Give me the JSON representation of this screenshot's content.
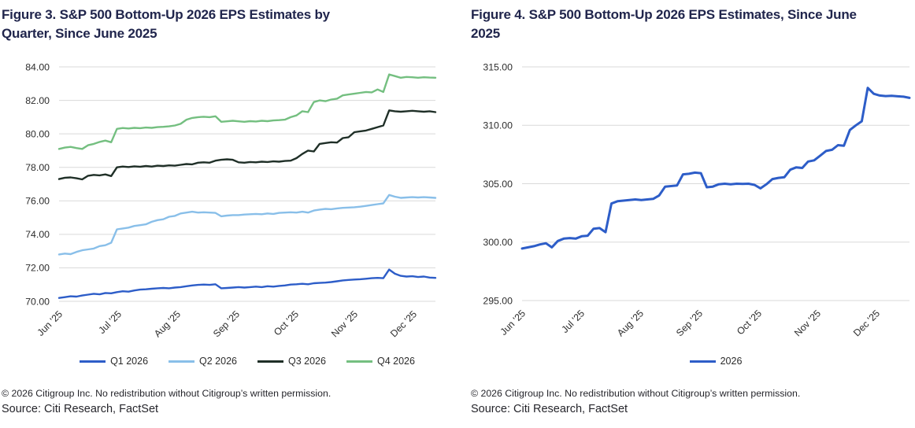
{
  "footer": {
    "copyright": "© 2026 Citigroup Inc. No redistribution without Citigroup’s written permission.",
    "source": "Source: Citi Research, FactSet"
  },
  "colors": {
    "q1_blue": "#2d5dc8",
    "q2_light_blue": "#89bfe9",
    "q3_dark_green": "#1f2f27",
    "q4_green": "#74bf80",
    "gridline": "#d9d9d9",
    "title_navy": "#20254c",
    "axis_text": "#2d2d2d"
  },
  "chart_data": [
    {
      "type": "line",
      "title": "Figure 3. S&P 500 Bottom-Up 2026 EPS Estimates by Quarter, Since June 2025",
      "xlabel": "",
      "ylabel": "",
      "ylim": [
        70,
        84
      ],
      "y_ticks": [
        84,
        82,
        80,
        78,
        76,
        74,
        72,
        70
      ],
      "grid": true,
      "legend_position": "bottom",
      "x_tick_labels": [
        "Jun '25",
        "Jul '25",
        "Aug '25",
        "Sep '25",
        "Oct '25",
        "Nov '25",
        "Dec '25"
      ],
      "series": [
        {
          "name": "Q1 2026",
          "color": "#2d5dc8",
          "values": [
            70.2,
            70.25,
            70.3,
            70.28,
            70.35,
            70.4,
            70.45,
            70.42,
            70.5,
            70.48,
            70.55,
            70.6,
            70.58,
            70.65,
            70.7,
            70.72,
            70.75,
            70.78,
            70.8,
            70.78,
            70.82,
            70.85,
            70.9,
            70.95,
            70.98,
            71.0,
            70.98,
            71.02,
            70.78,
            70.8,
            70.82,
            70.85,
            70.82,
            70.85,
            70.88,
            70.85,
            70.9,
            70.88,
            70.92,
            70.95,
            71.0,
            71.02,
            71.05,
            71.02,
            71.08,
            71.1,
            71.12,
            71.15,
            71.2,
            71.25,
            71.28,
            71.3,
            71.32,
            71.35,
            71.38,
            71.4,
            71.38,
            71.9,
            71.65,
            71.52,
            71.48,
            71.5,
            71.45,
            71.48,
            71.42,
            71.4
          ]
        },
        {
          "name": "Q2 2026",
          "color": "#89bfe9",
          "values": [
            72.8,
            72.85,
            72.82,
            72.95,
            73.05,
            73.1,
            73.15,
            73.3,
            73.35,
            73.5,
            74.3,
            74.35,
            74.4,
            74.5,
            74.55,
            74.6,
            74.75,
            74.85,
            74.9,
            75.05,
            75.1,
            75.25,
            75.3,
            75.35,
            75.3,
            75.32,
            75.3,
            75.28,
            75.08,
            75.12,
            75.15,
            75.15,
            75.18,
            75.2,
            75.22,
            75.2,
            75.25,
            75.22,
            75.28,
            75.3,
            75.32,
            75.3,
            75.35,
            75.3,
            75.42,
            75.48,
            75.52,
            75.5,
            75.55,
            75.58,
            75.6,
            75.62,
            75.65,
            75.7,
            75.75,
            75.8,
            75.85,
            76.35,
            76.25,
            76.18,
            76.2,
            76.22,
            76.2,
            76.22,
            76.2,
            76.18
          ]
        },
        {
          "name": "Q3 2026",
          "color": "#1f2f27",
          "values": [
            77.3,
            77.38,
            77.4,
            77.35,
            77.28,
            77.5,
            77.55,
            77.52,
            77.58,
            77.48,
            78.0,
            78.05,
            78.02,
            78.06,
            78.04,
            78.08,
            78.05,
            78.1,
            78.08,
            78.12,
            78.1,
            78.15,
            78.2,
            78.18,
            78.28,
            78.3,
            78.28,
            78.4,
            78.45,
            78.48,
            78.45,
            78.3,
            78.28,
            78.32,
            78.3,
            78.34,
            78.32,
            78.36,
            78.34,
            78.38,
            78.4,
            78.55,
            78.8,
            79.0,
            78.95,
            79.4,
            79.45,
            79.5,
            79.48,
            79.75,
            79.8,
            80.1,
            80.15,
            80.2,
            80.3,
            80.4,
            80.5,
            81.4,
            81.35,
            81.32,
            81.35,
            81.38,
            81.35,
            81.32,
            81.35,
            81.3
          ]
        },
        {
          "name": "Q4 2026",
          "color": "#74bf80",
          "values": [
            79.1,
            79.18,
            79.22,
            79.15,
            79.1,
            79.32,
            79.4,
            79.52,
            79.6,
            79.5,
            80.3,
            80.35,
            80.32,
            80.36,
            80.34,
            80.38,
            80.36,
            80.4,
            80.42,
            80.45,
            80.5,
            80.6,
            80.85,
            80.95,
            81.0,
            81.02,
            81.0,
            81.05,
            80.72,
            80.75,
            80.78,
            80.75,
            80.72,
            80.76,
            80.74,
            80.78,
            80.76,
            80.8,
            80.82,
            80.85,
            81.0,
            81.1,
            81.35,
            81.3,
            81.9,
            82.0,
            81.95,
            82.05,
            82.1,
            82.3,
            82.35,
            82.4,
            82.45,
            82.5,
            82.48,
            82.65,
            82.5,
            83.55,
            83.45,
            83.35,
            83.4,
            83.38,
            83.35,
            83.38,
            83.36,
            83.35
          ]
        }
      ]
    },
    {
      "type": "line",
      "title": "Figure 4. S&P 500 Bottom-Up 2026 EPS Estimates, Since June 2025",
      "xlabel": "",
      "ylabel": "",
      "ylim": [
        295,
        315
      ],
      "y_ticks": [
        315,
        310,
        305,
        300,
        295
      ],
      "grid": true,
      "legend_position": "bottom",
      "x_tick_labels": [
        "Jun '25",
        "Jul '25",
        "Aug '25",
        "Sep '25",
        "Oct '25",
        "Nov '25",
        "Dec '25"
      ],
      "series": [
        {
          "name": "2026",
          "color": "#2d5dc8",
          "values": [
            299.45,
            299.55,
            299.65,
            299.8,
            299.9,
            299.55,
            300.1,
            300.3,
            300.35,
            300.3,
            300.5,
            300.55,
            301.15,
            301.2,
            300.85,
            303.3,
            303.5,
            303.55,
            303.6,
            303.65,
            303.6,
            303.65,
            303.7,
            304.0,
            304.75,
            304.8,
            304.85,
            305.8,
            305.85,
            305.95,
            305.9,
            304.7,
            304.75,
            304.95,
            305.0,
            304.95,
            305.0,
            304.98,
            305.0,
            304.9,
            304.6,
            304.95,
            305.4,
            305.5,
            305.55,
            306.2,
            306.4,
            306.35,
            306.9,
            307.0,
            307.4,
            307.8,
            307.9,
            308.3,
            308.25,
            309.6,
            310.0,
            310.35,
            313.2,
            312.7,
            312.55,
            312.5,
            312.52,
            312.48,
            312.45,
            312.35
          ]
        }
      ]
    }
  ]
}
